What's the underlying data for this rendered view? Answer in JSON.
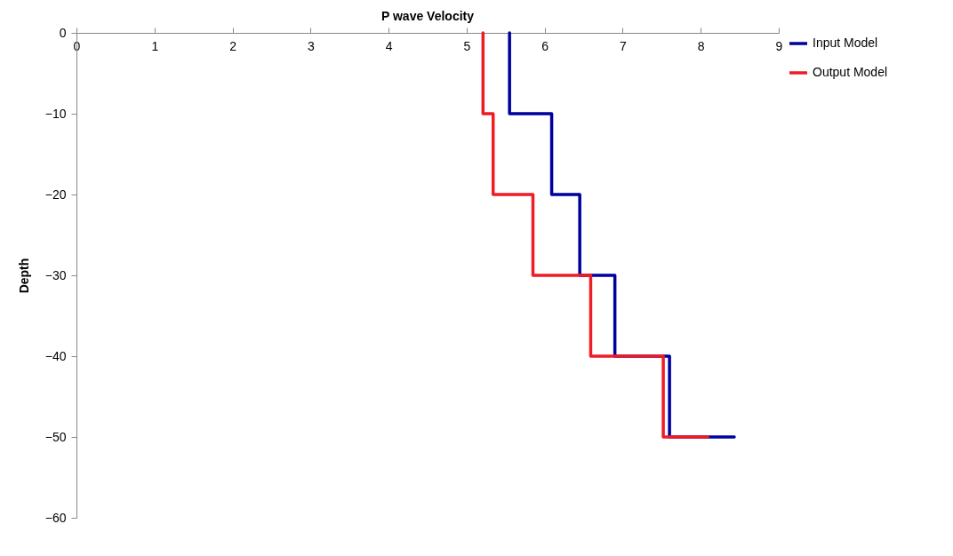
{
  "chart_data": {
    "type": "line",
    "title": "P wave Velocity",
    "ylabel": "Depth",
    "xlim": [
      0,
      9
    ],
    "xticks": [
      0,
      1,
      2,
      3,
      4,
      5,
      6,
      7,
      8,
      9
    ],
    "ylim": [
      -60,
      0
    ],
    "yticks": [
      0,
      -10,
      -20,
      -30,
      -40,
      -50,
      -60
    ],
    "grid": false,
    "legend": "right",
    "marker": "none",
    "line_style": "solid",
    "series": [
      {
        "name": "Input Model",
        "color": "#0000a0",
        "x": [
          5.55,
          5.55,
          6.09,
          6.09,
          6.45,
          6.45,
          6.9,
          6.9,
          7.6,
          7.6,
          8.43
        ],
        "values": [
          0,
          -10,
          -10,
          -20,
          -20,
          -30,
          -30,
          -40,
          -40,
          -50,
          -50
        ]
      },
      {
        "name": "Output Model",
        "color": "#ee1c25",
        "x": [
          5.21,
          5.21,
          5.34,
          5.34,
          5.85,
          5.85,
          6.59,
          6.59,
          7.52,
          7.52,
          8.09
        ],
        "values": [
          0,
          -10,
          -10,
          -20,
          -20,
          -30,
          -30,
          -40,
          -40,
          -50,
          -50
        ]
      }
    ]
  }
}
